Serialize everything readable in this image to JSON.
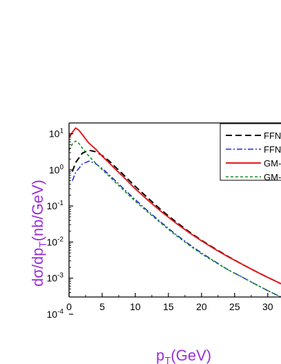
{
  "chart_data": {
    "type": "line",
    "title": "",
    "xlabel": "p",
    "xlabel_sub": "T",
    "xlabel_suffix": "(GeV)",
    "ylabel": "dσ/dp",
    "ylabel_sub": "T",
    "ylabel_suffix": "(nb/GeV)",
    "label_color": "#9b30d9",
    "xlim": [
      0,
      32
    ],
    "ylim": [
      0.0003,
      20
    ],
    "yscale": "log",
    "x_ticks": [
      0,
      5,
      10,
      15,
      20,
      25,
      30
    ],
    "y_ticks": [
      {
        "base": "10",
        "exp": "1",
        "value": 10
      },
      {
        "base": "10",
        "exp": "0",
        "value": 1
      },
      {
        "base": "10",
        "exp": "-1",
        "value": 0.1
      },
      {
        "base": "10",
        "exp": "-2",
        "value": 0.01
      },
      {
        "base": "10",
        "exp": "-3",
        "value": 0.001
      },
      {
        "base": "10",
        "exp": "-4",
        "value": 0.0001
      }
    ],
    "grid": false,
    "legend_position": "top-right",
    "series": [
      {
        "name": "FFN |y",
        "color": "#000000",
        "dash": "9,5",
        "width": 2,
        "x": [
          0.5,
          1,
          2,
          3,
          4,
          5,
          6,
          7,
          8,
          10,
          12,
          14,
          16,
          18,
          20,
          22,
          24,
          26,
          28,
          30,
          32
        ],
        "y": [
          0.9,
          1.6,
          2.9,
          3.5,
          3.2,
          2.5,
          1.8,
          1.2,
          0.8,
          0.35,
          0.16,
          0.075,
          0.038,
          0.02,
          0.0112,
          0.0066,
          0.004,
          0.0025,
          0.0016,
          0.00105,
          0.0007
        ]
      },
      {
        "name": "FFN |y",
        "color": "#1f2fd6",
        "dash": "8,3,2,3",
        "width": 1.6,
        "x": [
          0.5,
          1,
          2,
          3,
          4,
          5,
          6,
          7,
          8,
          10,
          12,
          14,
          16,
          18,
          20,
          22,
          24,
          26,
          28,
          30,
          32
        ],
        "y": [
          0.5,
          0.85,
          1.45,
          1.75,
          1.5,
          1.1,
          0.75,
          0.5,
          0.33,
          0.15,
          0.07,
          0.034,
          0.017,
          0.009,
          0.005,
          0.0029,
          0.0017,
          0.0011,
          0.0007,
          0.00045,
          0.0003
        ]
      },
      {
        "name": "GM-V",
        "color": "#e41a1c",
        "dash": "",
        "width": 2,
        "x": [
          0,
          0.5,
          1,
          1.5,
          2,
          3,
          4,
          5,
          6,
          7,
          8,
          10,
          12,
          14,
          16,
          18,
          20,
          22,
          24,
          26,
          28,
          30,
          32
        ],
        "y": [
          8.0,
          11.0,
          14.5,
          12.5,
          9.5,
          5.5,
          3.8,
          2.4,
          1.6,
          1.05,
          0.7,
          0.3,
          0.14,
          0.068,
          0.035,
          0.019,
          0.0108,
          0.0064,
          0.0039,
          0.0025,
          0.0016,
          0.00105,
          0.0007
        ]
      },
      {
        "name": "GM-V",
        "color": "#1a8c2a",
        "dash": "4,3",
        "width": 1.6,
        "x": [
          0,
          0.5,
          1,
          1.5,
          2,
          3,
          4,
          5,
          6,
          7,
          8,
          10,
          12,
          14,
          16,
          18,
          20,
          22,
          24,
          26,
          28,
          30,
          32
        ],
        "y": [
          3.5,
          5.2,
          6.3,
          5.4,
          4.0,
          2.4,
          1.55,
          1.02,
          0.68,
          0.45,
          0.3,
          0.135,
          0.065,
          0.032,
          0.016,
          0.0085,
          0.0047,
          0.0028,
          0.0017,
          0.0011,
          0.0007,
          0.00045,
          0.0003
        ]
      }
    ]
  }
}
